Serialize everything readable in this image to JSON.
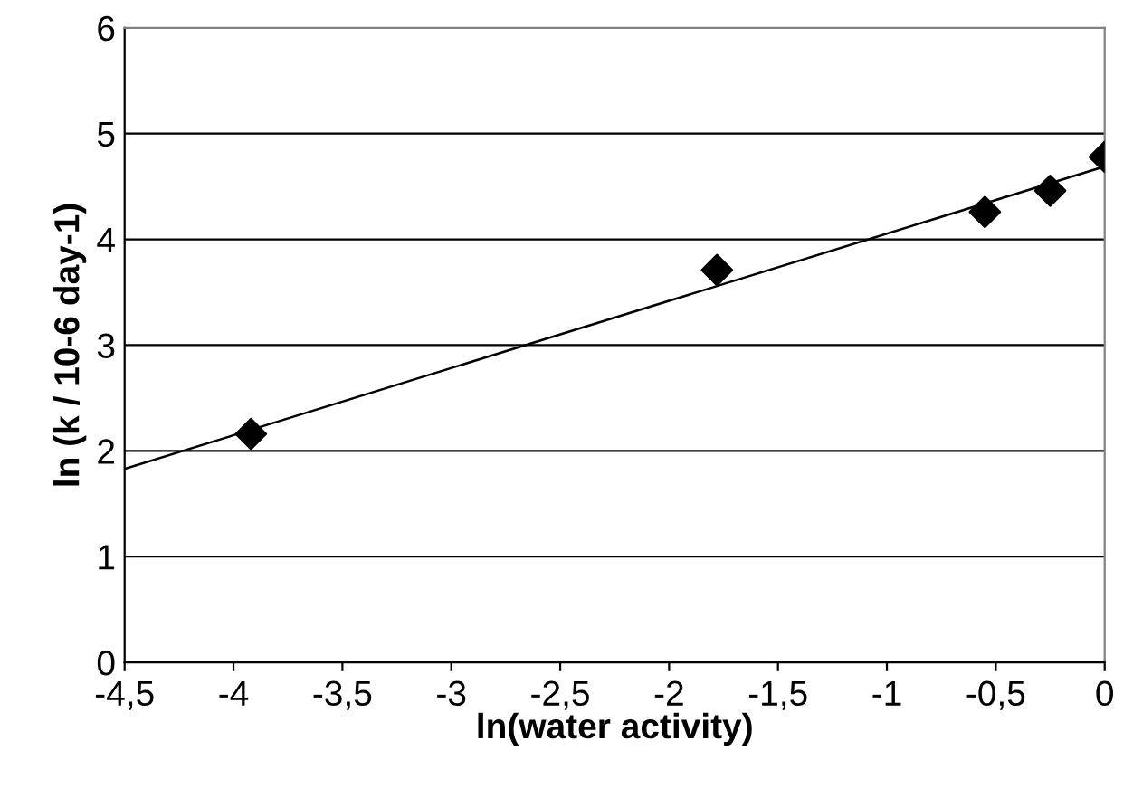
{
  "chart_data": {
    "type": "scatter",
    "xlabel": "ln(water activity)",
    "ylabel": "ln (k / 10-6 day-1)",
    "x": [
      -3.92,
      -1.78,
      -0.55,
      -0.25,
      0
    ],
    "series": [
      {
        "color": "#000000",
        "marker": "diamond",
        "values": [
          2.16,
          3.71,
          4.26,
          4.46,
          4.78
        ]
      },
      {
        "type": "line",
        "color": "#000000",
        "marker": "none",
        "x": [
          -4.5,
          0
        ],
        "values": [
          1.83,
          4.69
        ]
      }
    ],
    "xlim": [
      -4.5,
      0
    ],
    "ylim": [
      0,
      6
    ],
    "xticks": [
      {
        "value": -4.5,
        "label": "-4,5"
      },
      -4,
      {
        "value": -3.5,
        "label": "-3,5"
      },
      -3,
      {
        "value": -2.5,
        "label": "-2,5"
      },
      -2,
      {
        "value": -1.5,
        "label": "-1,5"
      },
      -1,
      {
        "value": -0.5,
        "label": "-0,5"
      },
      0
    ],
    "yticks": [
      0,
      1,
      2,
      3,
      4,
      5,
      6
    ],
    "grid": "y",
    "legend": false
  }
}
